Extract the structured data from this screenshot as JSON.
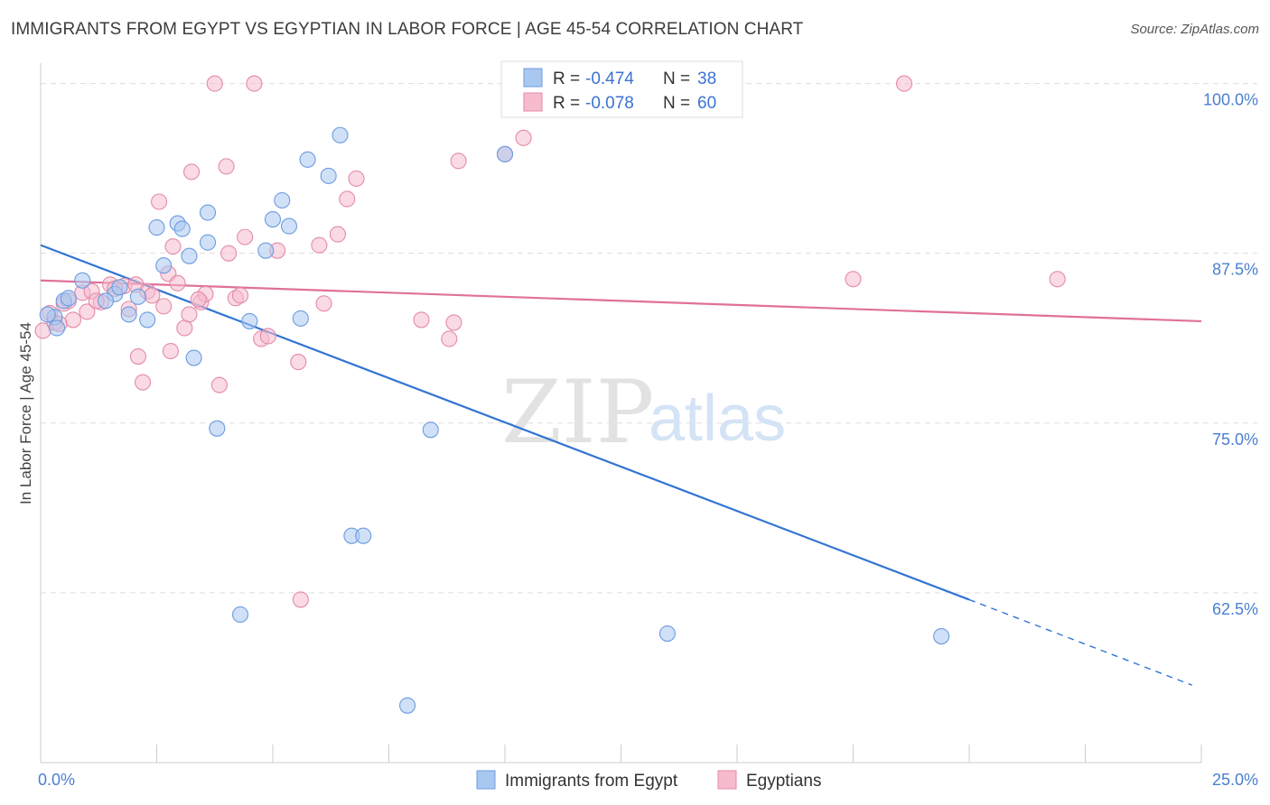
{
  "title": "IMMIGRANTS FROM EGYPT VS EGYPTIAN IN LABOR FORCE | AGE 45-54 CORRELATION CHART",
  "source": "Source: ZipAtlas.com",
  "watermark": {
    "zip": "ZIP",
    "atlas": "atlas"
  },
  "colors": {
    "egypt_fill": "#a9c8f0",
    "egypt_stroke": "#6d9be0",
    "egypt_line": "#3274d4",
    "egyptians_fill": "#f6bccd",
    "egyptians_stroke": "#e58aa8",
    "egyptians_line": "#e0709a",
    "grid": "#dddddd",
    "tick_text": "#4a7fd0"
  },
  "legend": {
    "rows": [
      {
        "r_label": "R =",
        "r_value": "-0.474",
        "n_label": "N =",
        "n_value": "38",
        "series": "egypt"
      },
      {
        "r_label": "R =",
        "r_value": "-0.078",
        "n_label": "N =",
        "n_value": "60",
        "series": "egyptians"
      }
    ]
  },
  "chart_data": {
    "type": "scatter",
    "title": "IMMIGRANTS FROM EGYPT VS EGYPTIAN IN LABOR FORCE | AGE 45-54 CORRELATION CHART",
    "xlabel": "",
    "ylabel": "In Labor Force | Age 45-54",
    "xlim": [
      0,
      25
    ],
    "ylim": [
      50,
      101.5
    ],
    "x_tick_labels": [
      {
        "value": 0,
        "label": "0.0%"
      },
      {
        "value": 25,
        "label": "25.0%"
      }
    ],
    "y_tick_labels": [
      {
        "value": 100,
        "label": "100.0%"
      },
      {
        "value": 87.5,
        "label": "87.5%"
      },
      {
        "value": 75,
        "label": "75.0%"
      },
      {
        "value": 62.5,
        "label": "62.5%"
      }
    ],
    "grid": "horizontal dashed",
    "legend_position": "top-center",
    "series": [
      {
        "name": "Immigrants from Egypt",
        "key": "egypt",
        "points": [
          [
            0.3,
            82.8
          ],
          [
            0.35,
            82.0
          ],
          [
            0.5,
            84.0
          ],
          [
            0.6,
            84.2
          ],
          [
            0.9,
            85.5
          ],
          [
            1.6,
            84.5
          ],
          [
            1.7,
            85.0
          ],
          [
            1.9,
            83.0
          ],
          [
            2.1,
            84.3
          ],
          [
            2.3,
            82.6
          ],
          [
            2.5,
            89.4
          ],
          [
            2.65,
            86.6
          ],
          [
            2.95,
            89.7
          ],
          [
            3.05,
            89.3
          ],
          [
            3.2,
            87.3
          ],
          [
            3.3,
            79.8
          ],
          [
            3.6,
            88.3
          ],
          [
            3.6,
            90.5
          ],
          [
            3.8,
            74.6
          ],
          [
            4.3,
            60.9
          ],
          [
            4.5,
            82.5
          ],
          [
            4.85,
            87.7
          ],
          [
            5.0,
            90.0
          ],
          [
            5.2,
            91.4
          ],
          [
            5.35,
            89.5
          ],
          [
            5.6,
            82.7
          ],
          [
            5.75,
            94.4
          ],
          [
            6.2,
            93.2
          ],
          [
            6.45,
            96.2
          ],
          [
            6.7,
            66.7
          ],
          [
            6.95,
            66.7
          ],
          [
            7.9,
            54.2
          ],
          [
            8.4,
            74.5
          ],
          [
            10.0,
            94.8
          ],
          [
            13.5,
            59.5
          ],
          [
            19.4,
            59.3
          ],
          [
            0.15,
            83.0
          ],
          [
            1.4,
            84.0
          ]
        ]
      },
      {
        "name": "Egyptians",
        "key": "egyptians",
        "points": [
          [
            0.05,
            81.8
          ],
          [
            0.2,
            83.1
          ],
          [
            0.3,
            82.4
          ],
          [
            0.5,
            83.8
          ],
          [
            0.7,
            82.6
          ],
          [
            0.9,
            84.6
          ],
          [
            1.0,
            83.2
          ],
          [
            1.1,
            84.7
          ],
          [
            1.3,
            83.9
          ],
          [
            1.5,
            85.2
          ],
          [
            1.8,
            85.1
          ],
          [
            1.9,
            83.4
          ],
          [
            2.05,
            85.2
          ],
          [
            2.1,
            79.9
          ],
          [
            2.2,
            78.0
          ],
          [
            2.3,
            84.7
          ],
          [
            2.55,
            91.3
          ],
          [
            2.65,
            83.6
          ],
          [
            2.75,
            86.0
          ],
          [
            2.85,
            88.0
          ],
          [
            2.95,
            85.3
          ],
          [
            3.1,
            82.0
          ],
          [
            3.2,
            83.0
          ],
          [
            3.25,
            93.5
          ],
          [
            3.45,
            83.9
          ],
          [
            3.55,
            84.5
          ],
          [
            3.75,
            100.0
          ],
          [
            3.85,
            77.8
          ],
          [
            4.0,
            93.9
          ],
          [
            4.05,
            87.5
          ],
          [
            4.2,
            84.2
          ],
          [
            4.4,
            88.7
          ],
          [
            4.6,
            100.0
          ],
          [
            4.75,
            81.2
          ],
          [
            4.9,
            81.4
          ],
          [
            5.1,
            87.7
          ],
          [
            5.55,
            79.5
          ],
          [
            5.6,
            62.0
          ],
          [
            6.0,
            88.1
          ],
          [
            6.1,
            83.8
          ],
          [
            6.4,
            88.9
          ],
          [
            6.6,
            91.5
          ],
          [
            6.8,
            93.0
          ],
          [
            8.2,
            82.6
          ],
          [
            8.8,
            81.2
          ],
          [
            8.9,
            82.4
          ],
          [
            9.0,
            94.3
          ],
          [
            10.0,
            94.8
          ],
          [
            10.4,
            96.0
          ],
          [
            17.5,
            85.6
          ],
          [
            21.9,
            85.6
          ],
          [
            18.6,
            100.0
          ],
          [
            0.4,
            82.3
          ],
          [
            1.2,
            84.0
          ],
          [
            2.4,
            84.4
          ],
          [
            2.8,
            80.3
          ],
          [
            0.6,
            84.0
          ],
          [
            1.6,
            84.9
          ],
          [
            3.4,
            84.1
          ],
          [
            4.3,
            84.4
          ]
        ]
      }
    ],
    "trend_lines": [
      {
        "series": "egypt",
        "x0": 0,
        "y0": 88.1,
        "x1": 20,
        "y1": 62.0,
        "dashed_to_x": 24.8,
        "dashed_to_y": 55.7
      },
      {
        "series": "egyptians",
        "x0": 0,
        "y0": 85.5,
        "x1": 25,
        "y1": 82.5
      }
    ]
  },
  "bottom_legend": [
    {
      "label": "Immigrants from Egypt",
      "series": "egypt"
    },
    {
      "label": "Egyptians",
      "series": "egyptians"
    }
  ]
}
